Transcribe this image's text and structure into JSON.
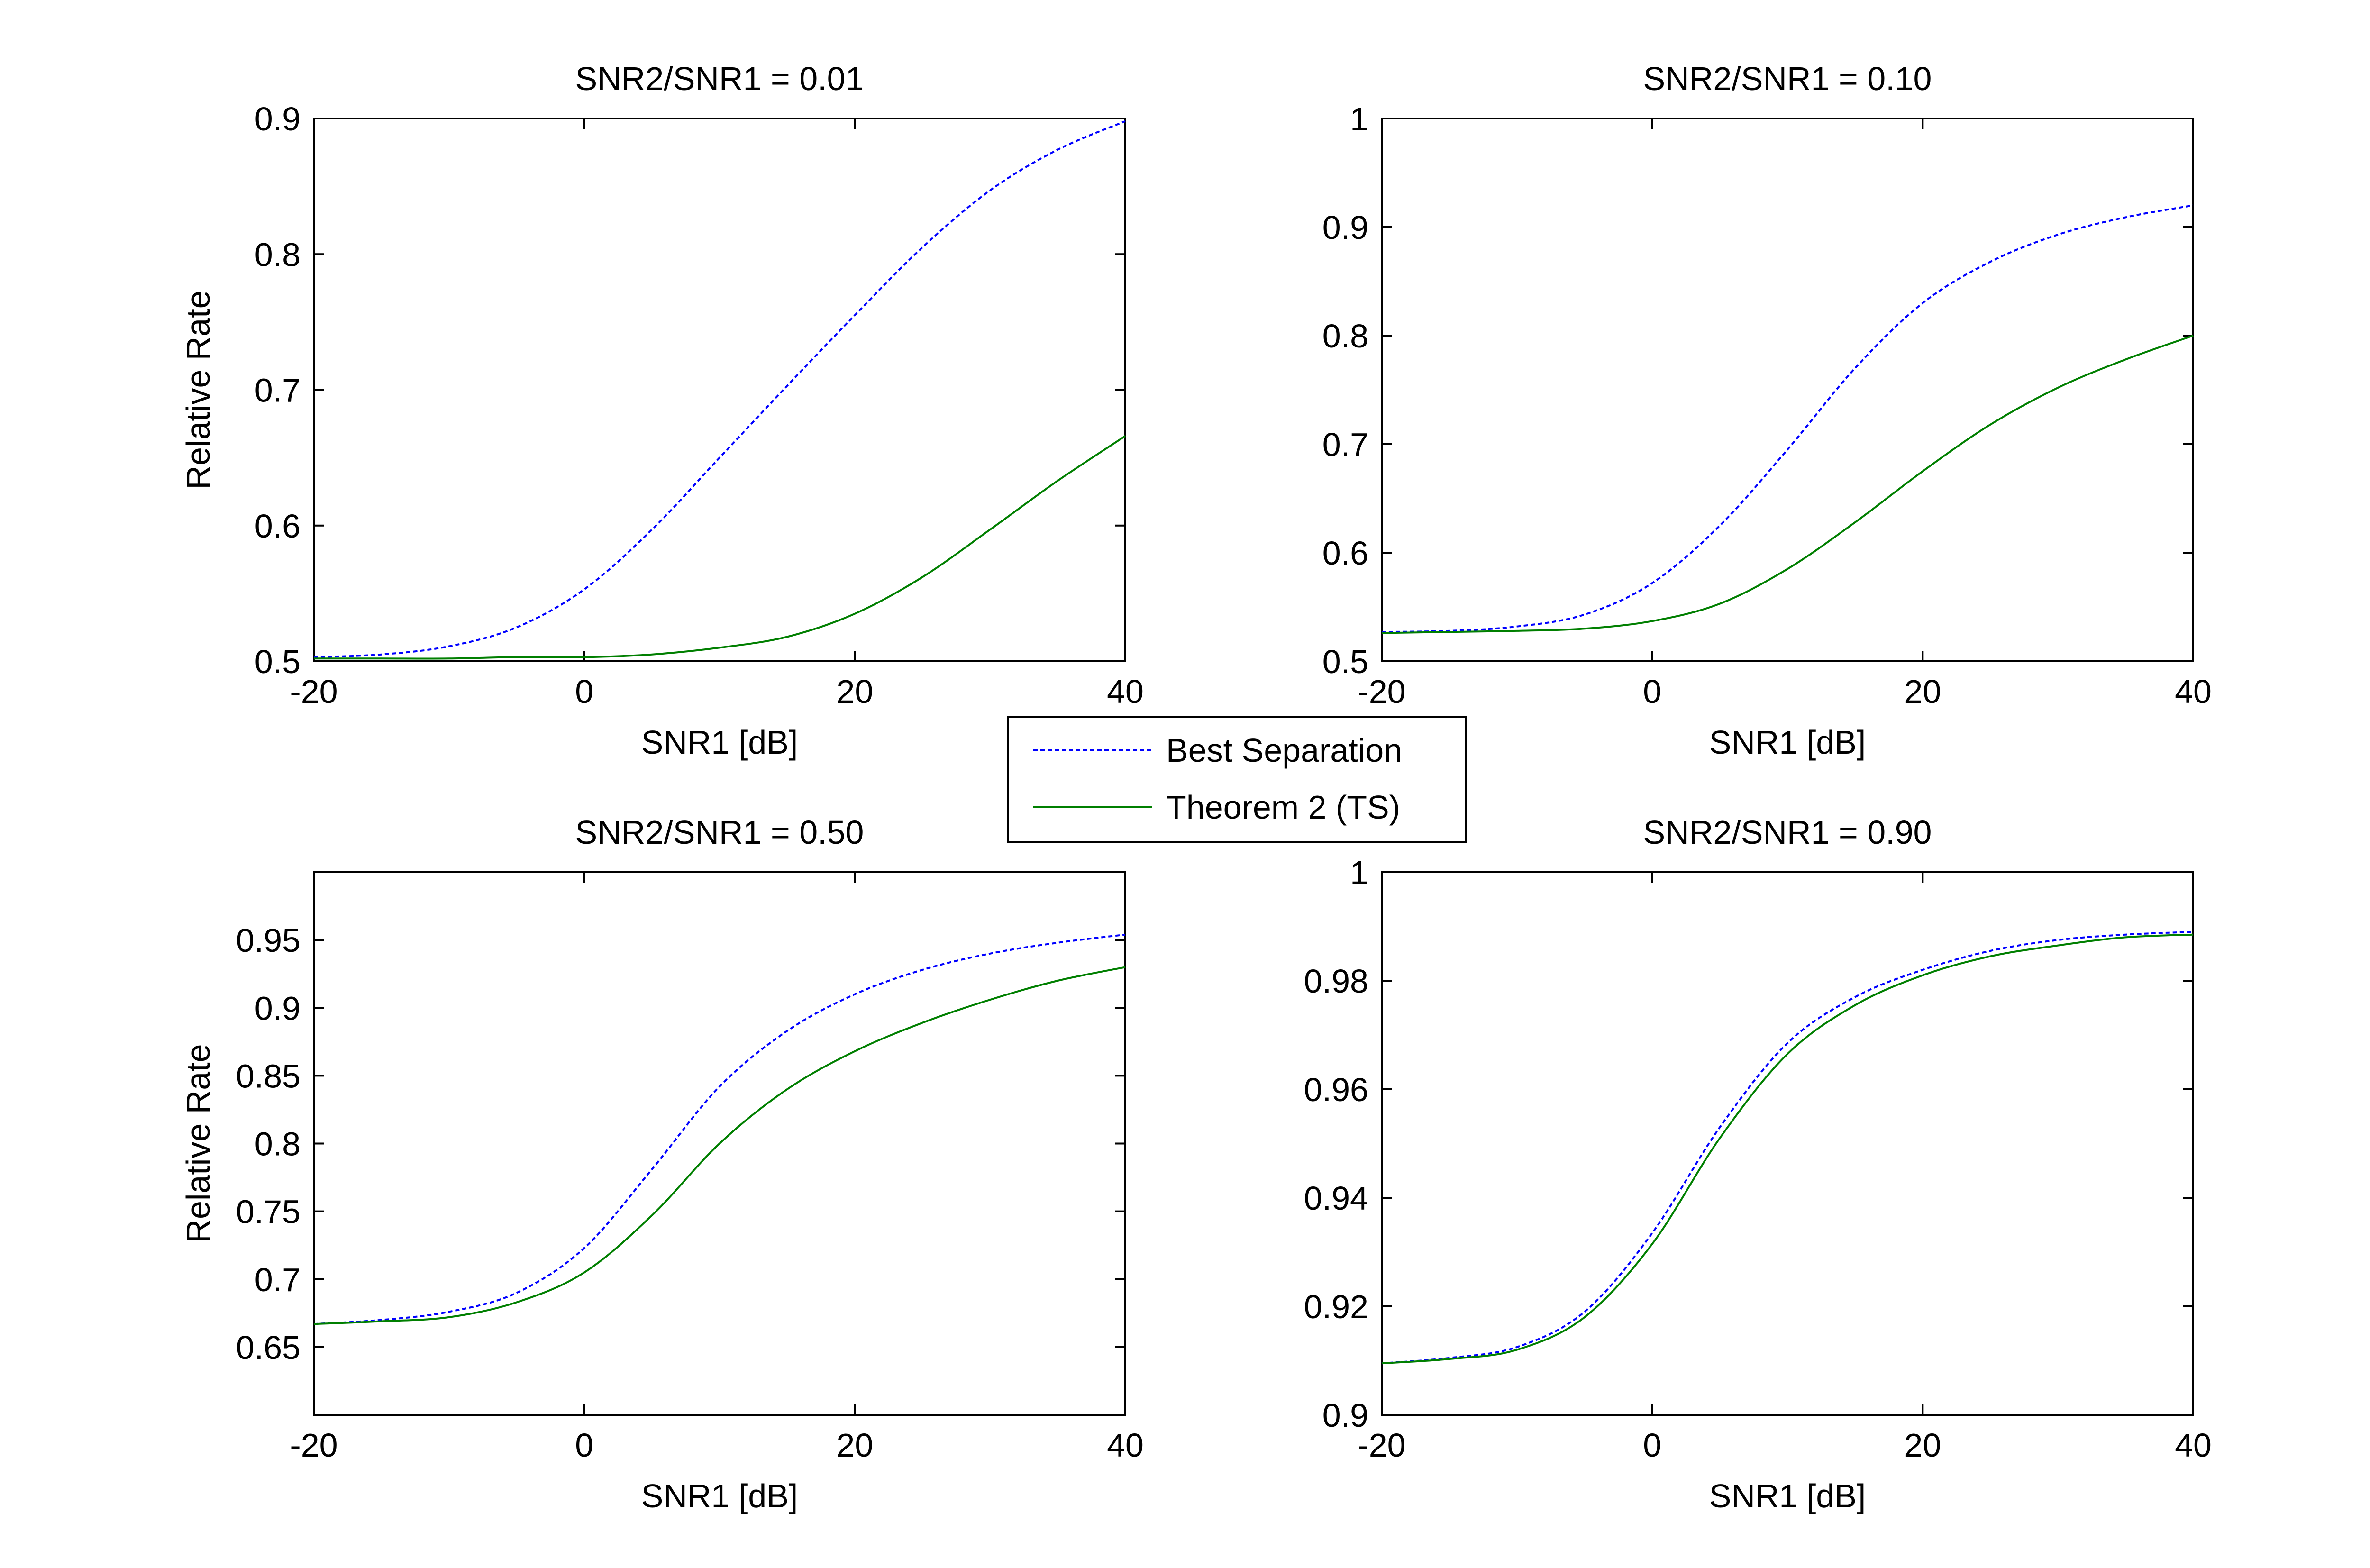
{
  "chart_data": [
    {
      "type": "line",
      "title": "SNR2/SNR1 = 0.01",
      "xlabel": "SNR1 [dB]",
      "ylabel": "Relative Rate",
      "xlim": [
        -20,
        40
      ],
      "ylim": [
        0.5,
        0.9
      ],
      "xticks": [
        -20,
        0,
        20,
        40
      ],
      "xtick_labels": [
        "-20",
        "0",
        "20",
        "40"
      ],
      "yticks": [
        0.5,
        0.6,
        0.7,
        0.8,
        0.9
      ],
      "ytick_labels": [
        "0.5",
        "0.6",
        "0.7",
        "0.8",
        "0.9"
      ],
      "grid": false,
      "x": [
        -20,
        -15,
        -10,
        -5,
        0,
        5,
        10,
        15,
        20,
        25,
        30,
        35,
        40
      ],
      "series": [
        {
          "name": "Best Separation",
          "color": "#0000ff",
          "dash": "dotted",
          "values": [
            0.503,
            0.505,
            0.511,
            0.525,
            0.553,
            0.597,
            0.65,
            0.703,
            0.755,
            0.805,
            0.847,
            0.877,
            0.898
          ]
        },
        {
          "name": "Theorem 2 (TS)",
          "color": "#007f00",
          "dash": "solid",
          "values": [
            0.502,
            0.502,
            0.502,
            0.503,
            0.503,
            0.505,
            0.51,
            0.518,
            0.535,
            0.562,
            0.597,
            0.633,
            0.666
          ]
        }
      ]
    },
    {
      "type": "line",
      "title": "SNR2/SNR1 = 0.10",
      "xlabel": "SNR1 [dB]",
      "ylabel": "",
      "xlim": [
        -20,
        40
      ],
      "ylim": [
        0.5,
        1.0
      ],
      "xticks": [
        -20,
        0,
        20,
        40
      ],
      "xtick_labels": [
        "-20",
        "0",
        "20",
        "40"
      ],
      "yticks": [
        0.5,
        0.6,
        0.7,
        0.8,
        0.9,
        1.0
      ],
      "ytick_labels": [
        "0.5",
        "0.6",
        "0.7",
        "0.8",
        "0.9",
        "1"
      ],
      "grid": false,
      "x": [
        -20,
        -15,
        -10,
        -5,
        0,
        5,
        10,
        15,
        20,
        25,
        30,
        35,
        40
      ],
      "series": [
        {
          "name": "Best Separation",
          "color": "#0000ff",
          "dash": "dotted",
          "values": [
            0.527,
            0.528,
            0.532,
            0.543,
            0.572,
            0.625,
            0.695,
            0.77,
            0.83,
            0.868,
            0.893,
            0.909,
            0.92
          ]
        },
        {
          "name": "Theorem 2 (TS)",
          "color": "#007f00",
          "dash": "solid",
          "values": [
            0.526,
            0.527,
            0.528,
            0.53,
            0.537,
            0.553,
            0.585,
            0.628,
            0.675,
            0.718,
            0.752,
            0.778,
            0.8
          ]
        }
      ]
    },
    {
      "type": "line",
      "title": "SNR2/SNR1 = 0.50",
      "xlabel": "SNR1 [dB]",
      "ylabel": "Relative Rate",
      "xlim": [
        -20,
        40
      ],
      "ylim": [
        0.6,
        1.0
      ],
      "xticks": [
        -20,
        0,
        20,
        40
      ],
      "xtick_labels": [
        "-20",
        "0",
        "20",
        "40"
      ],
      "yticks": [
        0.65,
        0.7,
        0.75,
        0.8,
        0.85,
        0.9,
        0.95
      ],
      "ytick_labels": [
        "0.65",
        "0.7",
        "0.75",
        "0.8",
        "0.85",
        "0.9",
        "0.95"
      ],
      "grid": false,
      "x": [
        -20,
        -15,
        -10,
        -5,
        0,
        5,
        10,
        15,
        20,
        25,
        30,
        35,
        40
      ],
      "series": [
        {
          "name": "Best Separation",
          "color": "#0000ff",
          "dash": "dotted",
          "values": [
            0.667,
            0.67,
            0.676,
            0.69,
            0.723,
            0.781,
            0.842,
            0.883,
            0.91,
            0.928,
            0.94,
            0.948,
            0.954
          ]
        },
        {
          "name": "Theorem 2 (TS)",
          "color": "#007f00",
          "dash": "solid",
          "values": [
            0.667,
            0.669,
            0.672,
            0.683,
            0.705,
            0.747,
            0.8,
            0.84,
            0.868,
            0.889,
            0.906,
            0.92,
            0.93
          ]
        }
      ]
    },
    {
      "type": "line",
      "title": "SNR2/SNR1 = 0.90",
      "xlabel": "SNR1 [dB]",
      "ylabel": "",
      "xlim": [
        -20,
        40
      ],
      "ylim": [
        0.9,
        1.0
      ],
      "xticks": [
        -20,
        0,
        20,
        40
      ],
      "xtick_labels": [
        "-20",
        "0",
        "20",
        "40"
      ],
      "yticks": [
        0.9,
        0.92,
        0.94,
        0.96,
        0.98,
        1.0
      ],
      "ytick_labels": [
        "0.9",
        "0.92",
        "0.94",
        "0.96",
        "0.98",
        "1"
      ],
      "grid": false,
      "x": [
        -20,
        -15,
        -10,
        -5,
        0,
        5,
        10,
        15,
        20,
        25,
        30,
        35,
        40
      ],
      "series": [
        {
          "name": "Best Separation",
          "color": "#0000ff",
          "dash": "dotted",
          "values": [
            0.9095,
            0.9105,
            0.9125,
            0.919,
            0.9335,
            0.953,
            0.9685,
            0.977,
            0.982,
            0.9855,
            0.9875,
            0.9885,
            0.989
          ]
        },
        {
          "name": "Theorem 2 (TS)",
          "color": "#007f00",
          "dash": "solid",
          "values": [
            0.9095,
            0.9103,
            0.912,
            0.918,
            0.9315,
            0.951,
            0.9665,
            0.9755,
            0.981,
            0.9845,
            0.9865,
            0.988,
            0.9885
          ]
        }
      ]
    }
  ],
  "legend": {
    "placement": "center",
    "items": [
      {
        "label": "Best Separation",
        "color": "#0000ff",
        "dash": "dotted"
      },
      {
        "label": "Theorem 2 (TS)",
        "color": "#007f00",
        "dash": "solid"
      }
    ]
  }
}
